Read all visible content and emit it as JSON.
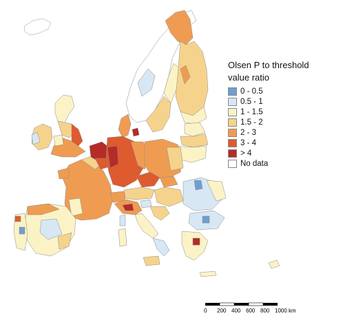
{
  "legend": {
    "title_line1": "Olsen P to threshold",
    "title_line2": "value ratio",
    "items": [
      {
        "label": "0 - 0.5",
        "color": "#6f9fd0"
      },
      {
        "label": "0.5 - 1",
        "color": "#d7e8f4"
      },
      {
        "label": "1 - 1.5",
        "color": "#fbf3c6"
      },
      {
        "label": "1.5 - 2",
        "color": "#f6d38c"
      },
      {
        "label": "2 - 3",
        "color": "#ef9c52"
      },
      {
        "label": "3 - 4",
        "color": "#de5a2f"
      },
      {
        "label": "> 4",
        "color": "#b52b27"
      },
      {
        "label": "No data",
        "color": "#ffffff"
      }
    ]
  },
  "scale_bar": {
    "ticks": [
      "0",
      "200",
      "400",
      "600",
      "800",
      "1000 km"
    ]
  }
}
